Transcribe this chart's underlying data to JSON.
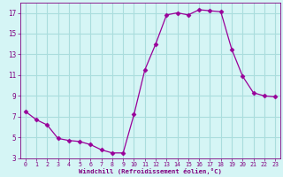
{
  "x": [
    0,
    1,
    2,
    3,
    4,
    5,
    6,
    7,
    8,
    9,
    10,
    11,
    12,
    13,
    14,
    15,
    16,
    17,
    18,
    19,
    20,
    21,
    22,
    23
  ],
  "y": [
    7.5,
    6.7,
    6.2,
    4.9,
    4.7,
    4.6,
    4.3,
    3.8,
    3.5,
    3.5,
    7.2,
    11.5,
    14.0,
    16.8,
    17.0,
    16.8,
    17.3,
    17.2,
    17.1,
    13.5,
    10.9,
    9.3,
    9.0,
    8.9
  ],
  "line_color": "#990099",
  "marker": "D",
  "marker_size": 2.5,
  "bg_color": "#d5f5f5",
  "grid_color": "#aadddd",
  "xlabel": "Windchill (Refroidissement éolien,°C)",
  "xlabel_color": "#800080",
  "tick_color": "#800080",
  "ylim": [
    3,
    18
  ],
  "xlim": [
    -0.5,
    23.5
  ],
  "yticks": [
    3,
    5,
    7,
    9,
    11,
    13,
    15,
    17
  ],
  "xticks": [
    0,
    1,
    2,
    3,
    4,
    5,
    6,
    7,
    8,
    9,
    10,
    11,
    12,
    13,
    14,
    15,
    16,
    17,
    18,
    19,
    20,
    21,
    22,
    23
  ]
}
